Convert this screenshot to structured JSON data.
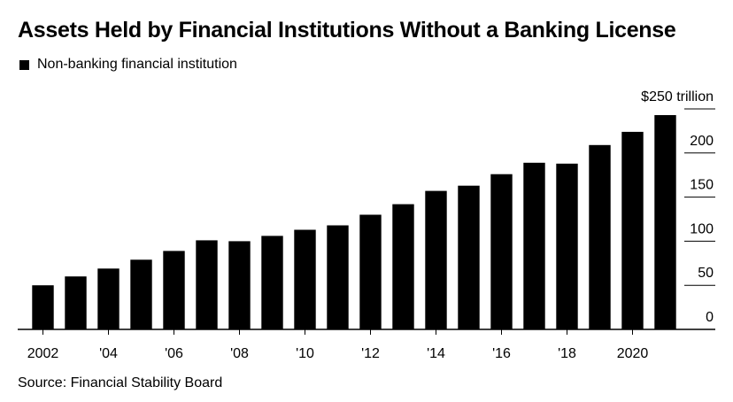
{
  "title": "Assets Held by Financial Institutions Without a Banking License",
  "source": "Source: Financial Stability Board",
  "colors": {
    "bars": "#000000",
    "grid": "#000000",
    "background": "#ffffff"
  },
  "chart_data": {
    "type": "bar",
    "series": [
      {
        "name": "Non-banking financial institution",
        "values": [
          50,
          60,
          69,
          79,
          89,
          101,
          100,
          106,
          113,
          118,
          130,
          142,
          157,
          163,
          176,
          189,
          188,
          209,
          224,
          243
        ]
      }
    ],
    "categories": [
      "2002",
      "2003",
      "2004",
      "2005",
      "2006",
      "2007",
      "2008",
      "2009",
      "2010",
      "2011",
      "2012",
      "2013",
      "2014",
      "2015",
      "2016",
      "2017",
      "2018",
      "2019",
      "2020",
      "2021"
    ],
    "x_tick_labels": [
      "2002",
      "'04",
      "'06",
      "'08",
      "'10",
      "'12",
      "'14",
      "'16",
      "'18",
      "2020"
    ],
    "y_tick_labels": [
      "$250 trillion",
      "200",
      "150",
      "100",
      "50",
      "0"
    ],
    "yticks": [
      250,
      200,
      150,
      100,
      50,
      0
    ],
    "ylim": [
      0,
      250
    ],
    "xlabel": "",
    "ylabel": "",
    "legend_position": "top-left",
    "grid": "horizontal"
  }
}
